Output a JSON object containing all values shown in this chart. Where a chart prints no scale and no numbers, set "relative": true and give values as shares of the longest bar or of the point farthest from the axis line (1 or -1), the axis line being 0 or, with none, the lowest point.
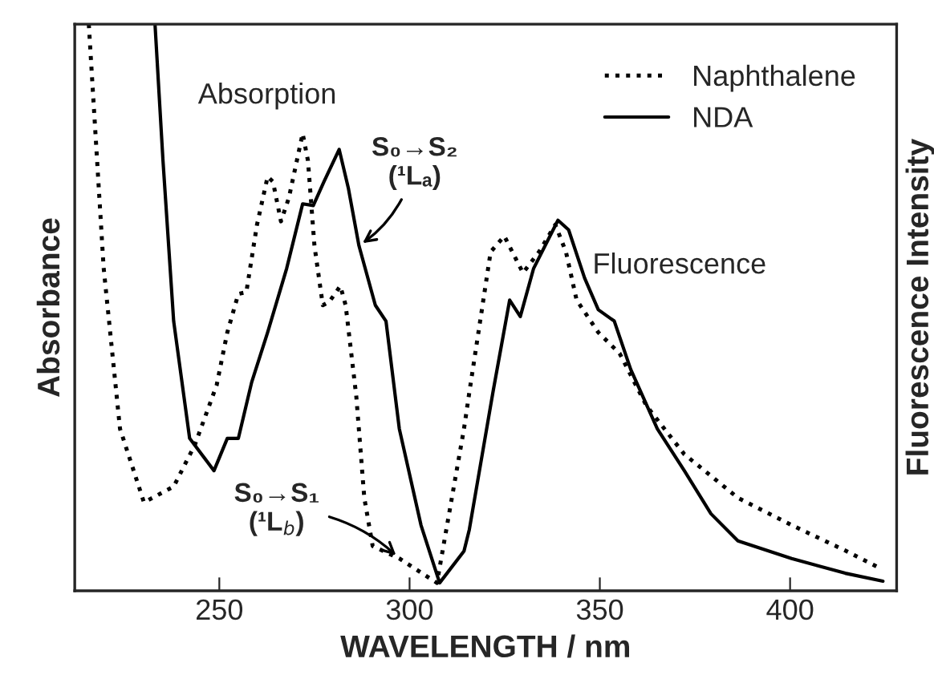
{
  "chart_data": {
    "type": "line",
    "relative": true,
    "xlabel": "WAVELENGTH / nm",
    "ylabel": "Absorbance",
    "y2label": "Fluorescence Intensity",
    "xlim": [
      212,
      428
    ],
    "xticks": [
      250,
      300,
      350,
      400
    ],
    "legend": "top right",
    "grid": false,
    "annotations": [
      "Absorption",
      "Fluorescence",
      {
        "text": "S₀→S₂\n(¹Lₐ)",
        "x": 286.7,
        "y": 0.609
      },
      {
        "text": "S₀→S₁\n(¹L$_{b}$)",
        "x": 297.3,
        "y": 0.057
      }
    ],
    "series": [
      {
        "name": "Naphthalene",
        "color": "#000000",
        "line_style": "dotted",
        "x": [
          215.7,
          219.6,
          223.9,
          230.2,
          238.0,
          243.6,
          249.3,
          252.1,
          255.0,
          257.1,
          259.9,
          262.7,
          264.1,
          266.2,
          268.3,
          271.9,
          273.3,
          275.0,
          277.2,
          278.9,
          281.8,
          283.2,
          286.0,
          288.1,
          290.3,
          297.3,
          307.2,
          314.3,
          315.7,
          321.3,
          324.9,
          329.8,
          334.0,
          338.3,
          341.1,
          343.9,
          349.6,
          355.2,
          362.3,
          372.2,
          386.3,
          400.4,
          414.5,
          423.0
        ],
        "values": [
          1.0,
          0.57,
          0.286,
          0.156,
          0.184,
          0.258,
          0.363,
          0.456,
          0.524,
          0.527,
          0.646,
          0.731,
          0.722,
          0.652,
          0.694,
          0.807,
          0.759,
          0.609,
          0.504,
          0.51,
          0.538,
          0.504,
          0.343,
          0.164,
          0.079,
          0.057,
          0.014,
          0.286,
          0.35,
          0.598,
          0.626,
          0.561,
          0.598,
          0.646,
          0.598,
          0.513,
          0.456,
          0.419,
          0.326,
          0.241,
          0.164,
          0.116,
          0.071,
          0.042
        ]
      },
      {
        "name": "NDA",
        "color": "#000000",
        "line_style": "solid",
        "x": [
          233.1,
          235.2,
          238.0,
          242.2,
          248.6,
          252.1,
          255.0,
          258.5,
          262.7,
          267.7,
          271.9,
          274.7,
          277.5,
          281.5,
          283.9,
          286.7,
          291.0,
          293.8,
          297.3,
          303.0,
          307.9,
          314.3,
          315.7,
          322.0,
          326.3,
          329.1,
          332.6,
          339.0,
          341.8,
          346.0,
          349.6,
          353.8,
          358.1,
          365.1,
          372.2,
          379.2,
          386.3,
          400.4,
          414.5,
          424.4
        ],
        "values": [
          1.0,
          0.759,
          0.476,
          0.269,
          0.212,
          0.269,
          0.269,
          0.368,
          0.456,
          0.569,
          0.683,
          0.68,
          0.722,
          0.779,
          0.711,
          0.609,
          0.504,
          0.476,
          0.286,
          0.116,
          0.014,
          0.07,
          0.108,
          0.354,
          0.513,
          0.484,
          0.569,
          0.654,
          0.637,
          0.552,
          0.496,
          0.476,
          0.391,
          0.286,
          0.212,
          0.136,
          0.088,
          0.057,
          0.031,
          0.017
        ]
      }
    ]
  }
}
